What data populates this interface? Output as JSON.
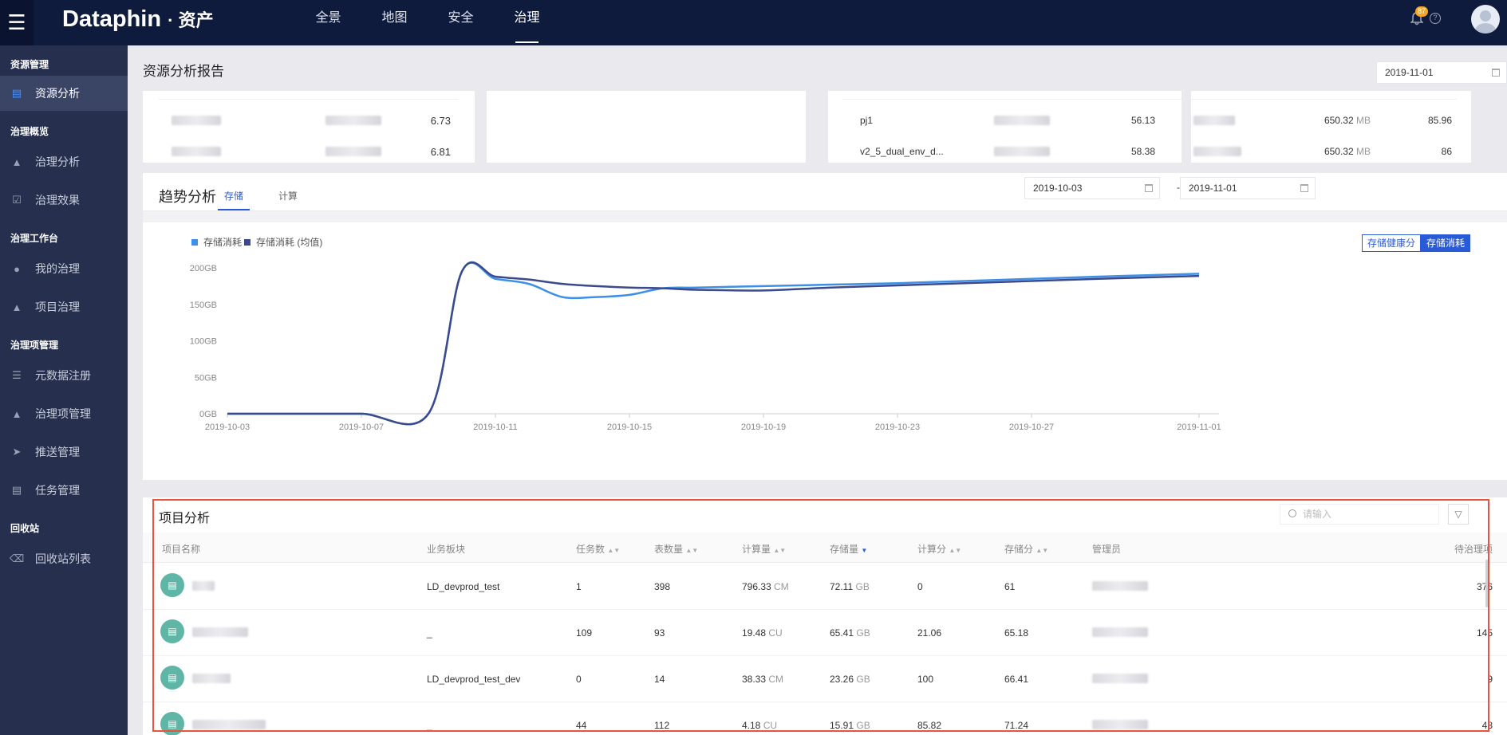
{
  "header": {
    "brand": "Dataphin",
    "brand_sub": "· 资产",
    "nav": [
      "全景",
      "地图",
      "安全",
      "治理"
    ],
    "active_nav": "治理",
    "notification_count": "87"
  },
  "sidebar": {
    "groups": [
      {
        "title": "资源管理",
        "items": [
          {
            "label": "资源分析",
            "icon": "doc-icon",
            "active": true
          }
        ]
      },
      {
        "title": "治理概览",
        "items": [
          {
            "label": "治理分析",
            "icon": "chart-icon"
          },
          {
            "label": "治理效果",
            "icon": "check-icon"
          }
        ]
      },
      {
        "title": "治理工作台",
        "items": [
          {
            "label": "我的治理",
            "icon": "user-icon"
          },
          {
            "label": "项目治理",
            "icon": "chart-icon"
          }
        ]
      },
      {
        "title": "治理项管理",
        "items": [
          {
            "label": "元数据注册",
            "icon": "list-icon"
          },
          {
            "label": "治理项管理",
            "icon": "chart-icon"
          },
          {
            "label": "推送管理",
            "icon": "send-icon"
          },
          {
            "label": "任务管理",
            "icon": "task-icon"
          }
        ]
      },
      {
        "title": "回收站",
        "items": [
          {
            "label": "回收站列表",
            "icon": "trash-icon"
          }
        ]
      }
    ]
  },
  "page": {
    "title": "资源分析报告",
    "date": "2019-11-01"
  },
  "top_panels": {
    "left_values": [
      "6.73",
      "6.81"
    ],
    "mid_rows": [
      {
        "name": "pj1",
        "value": "56.13"
      },
      {
        "name": "v2_5_dual_env_d...",
        "value": "58.38"
      }
    ],
    "right_rows": [
      {
        "size": "650.32",
        "unit": "MB",
        "value": "85.96"
      },
      {
        "size": "650.32",
        "unit": "MB",
        "value": "86"
      }
    ]
  },
  "trend": {
    "title": "趋势分析",
    "tabs": [
      "存储",
      "计算"
    ],
    "start_date": "2019-10-03",
    "separator": "-",
    "end_date": "2019-11-01",
    "toggle": [
      "存储健康分",
      "存储消耗"
    ]
  },
  "chart_data": {
    "type": "line",
    "x": [
      "2019-10-03",
      "2019-10-05",
      "2019-10-07",
      "2019-10-09",
      "2019-10-10",
      "2019-10-11",
      "2019-10-12",
      "2019-10-13",
      "2019-10-14",
      "2019-10-15",
      "2019-10-16",
      "2019-10-17",
      "2019-10-19",
      "2019-10-21",
      "2019-10-23",
      "2019-10-25",
      "2019-10-27",
      "2019-10-29",
      "2019-11-01"
    ],
    "x_ticks": [
      "2019-10-03",
      "2019-10-07",
      "2019-10-11",
      "2019-10-15",
      "2019-10-19",
      "2019-10-23",
      "2019-10-27",
      "2019-11-01"
    ],
    "y_ticks": [
      "0GB",
      "50GB",
      "100GB",
      "150GB",
      "200GB"
    ],
    "ylim": [
      0,
      200
    ],
    "series": [
      {
        "name": "存储消耗",
        "color": "#3d8fe8",
        "values": [
          0,
          0,
          0,
          0,
          195,
          185,
          178,
          160,
          160,
          163,
          172,
          173,
          175,
          177,
          179,
          182,
          185,
          188,
          192
        ]
      },
      {
        "name": "存储消耗 (均值)",
        "color": "#3b4a8c",
        "values": [
          0,
          0,
          0,
          0,
          195,
          188,
          184,
          178,
          175,
          173,
          172,
          170,
          169,
          173,
          176,
          179,
          182,
          185,
          189
        ]
      }
    ],
    "legend": "top-left",
    "grid": false
  },
  "projects": {
    "title": "项目分析",
    "search_placeholder": "请输入",
    "columns": [
      "项目名称",
      "业务板块",
      "任务数",
      "表数量",
      "计算量",
      "存储量",
      "计算分",
      "存储分",
      "管理员",
      "待治理项"
    ],
    "rows": [
      {
        "biz": "LD_devprod_test",
        "tasks": "1",
        "tables": "398",
        "compute": "796.33",
        "compute_unit": "CM",
        "storage": "72.11",
        "storage_unit": "GB",
        "cscore": "0",
        "sscore": "61",
        "pending": "376"
      },
      {
        "biz": "_",
        "tasks": "109",
        "tables": "93",
        "compute": "19.48",
        "compute_unit": "CU",
        "storage": "65.41",
        "storage_unit": "GB",
        "cscore": "21.06",
        "sscore": "65.18",
        "pending": "145"
      },
      {
        "biz": "LD_devprod_test_dev",
        "tasks": "0",
        "tables": "14",
        "compute": "38.33",
        "compute_unit": "CM",
        "storage": "23.26",
        "storage_unit": "GB",
        "cscore": "100",
        "sscore": "66.41",
        "pending": "9"
      },
      {
        "biz": "_",
        "tasks": "44",
        "tables": "112",
        "compute": "4.18",
        "compute_unit": "CU",
        "storage": "15.91",
        "storage_unit": "GB",
        "cscore": "85.82",
        "sscore": "71.24",
        "pending": "48"
      }
    ]
  }
}
